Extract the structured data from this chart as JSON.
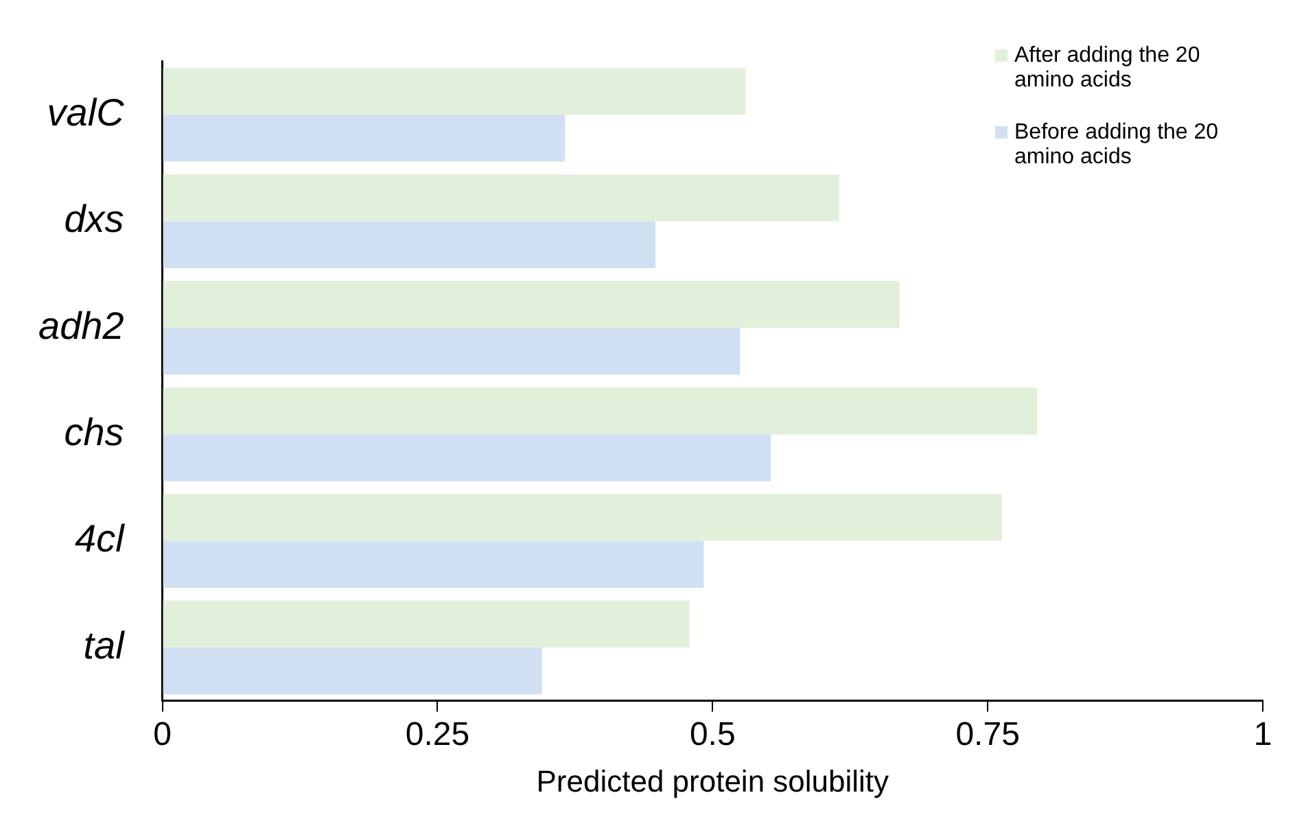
{
  "chart_data": {
    "type": "bar",
    "orientation": "horizontal",
    "xlabel": "Predicted protein solubility",
    "categories": [
      "valC",
      "dxs",
      "adh2",
      "chs",
      "4cl",
      "tal"
    ],
    "series": [
      {
        "name": "After adding the 20 amino acids",
        "color": "#e2efda",
        "values": [
          0.53,
          0.615,
          0.67,
          0.795,
          0.763,
          0.479
        ]
      },
      {
        "name": "Before adding the 20 amino acids",
        "color": "#d0e0f2",
        "values": [
          0.366,
          0.448,
          0.525,
          0.553,
          0.492,
          0.345
        ]
      }
    ],
    "xlim": [
      0,
      1
    ],
    "xticks": [
      0,
      0.25,
      0.5,
      0.75,
      1
    ],
    "grid": false,
    "legend": "top right"
  }
}
